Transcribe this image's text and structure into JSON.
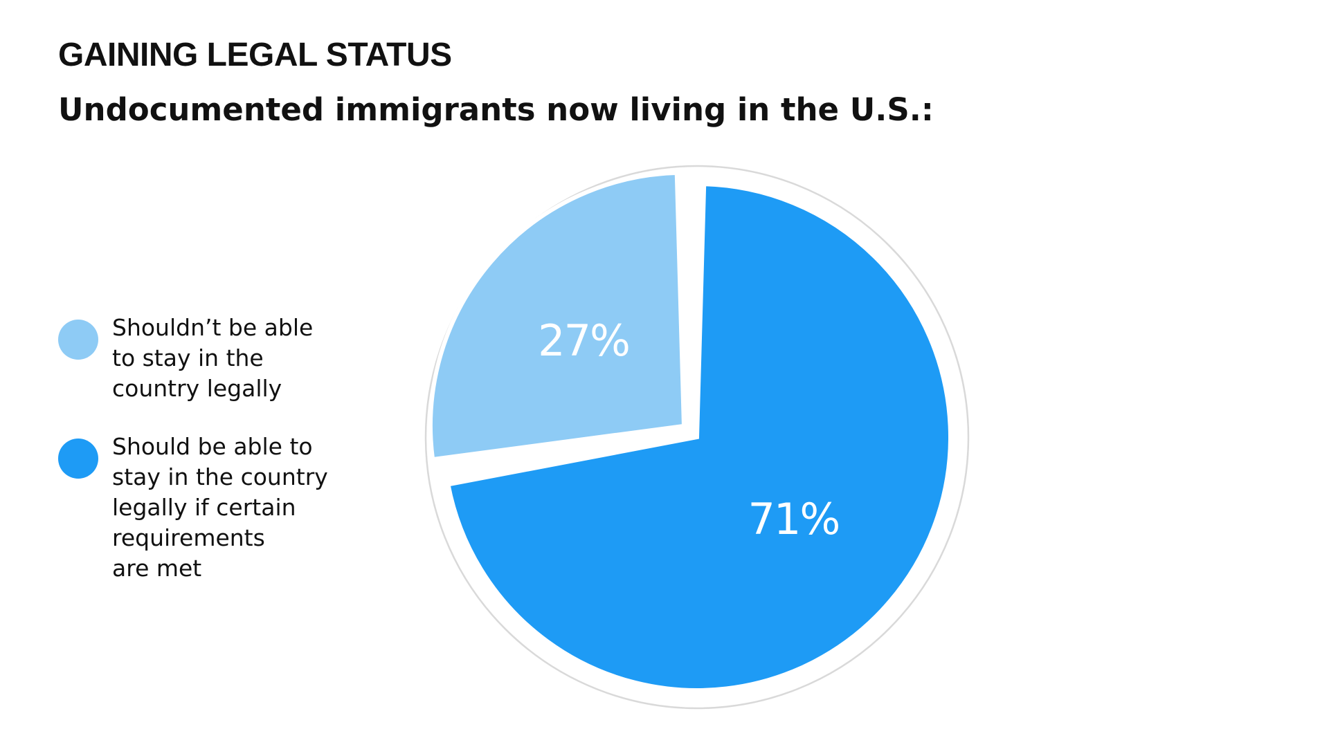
{
  "header": {
    "title": "GAINING LEGAL STATUS",
    "subtitle": "Undocumented immigrants now living in the U.S.:"
  },
  "colors": {
    "light_blue": "#8ecbf5",
    "blue": "#1e9bf5",
    "ring": "#d9d9d9"
  },
  "chart_data": {
    "type": "pie",
    "title": "GAINING LEGAL STATUS",
    "subtitle": "Undocumented immigrants now living in the U.S.:",
    "legend_position": "left",
    "slices": [
      {
        "name": "Shouldn’t be able to stay in the country legally",
        "value": 27,
        "label": "27%",
        "color": "#8ecbf5",
        "exploded": true
      },
      {
        "name": "Should be able to stay in the country legally if certain requirements are met",
        "value": 71,
        "label": "71%",
        "color": "#1e9bf5",
        "exploded": false
      }
    ],
    "legend": [
      {
        "lines": [
          "Shouldn’t be able",
          "to stay in the",
          "country legally"
        ],
        "color": "#8ecbf5"
      },
      {
        "lines": [
          "Should be able to",
          "stay in the country",
          "legally if certain",
          "requirements",
          "are met"
        ],
        "color": "#1e9bf5"
      }
    ]
  }
}
